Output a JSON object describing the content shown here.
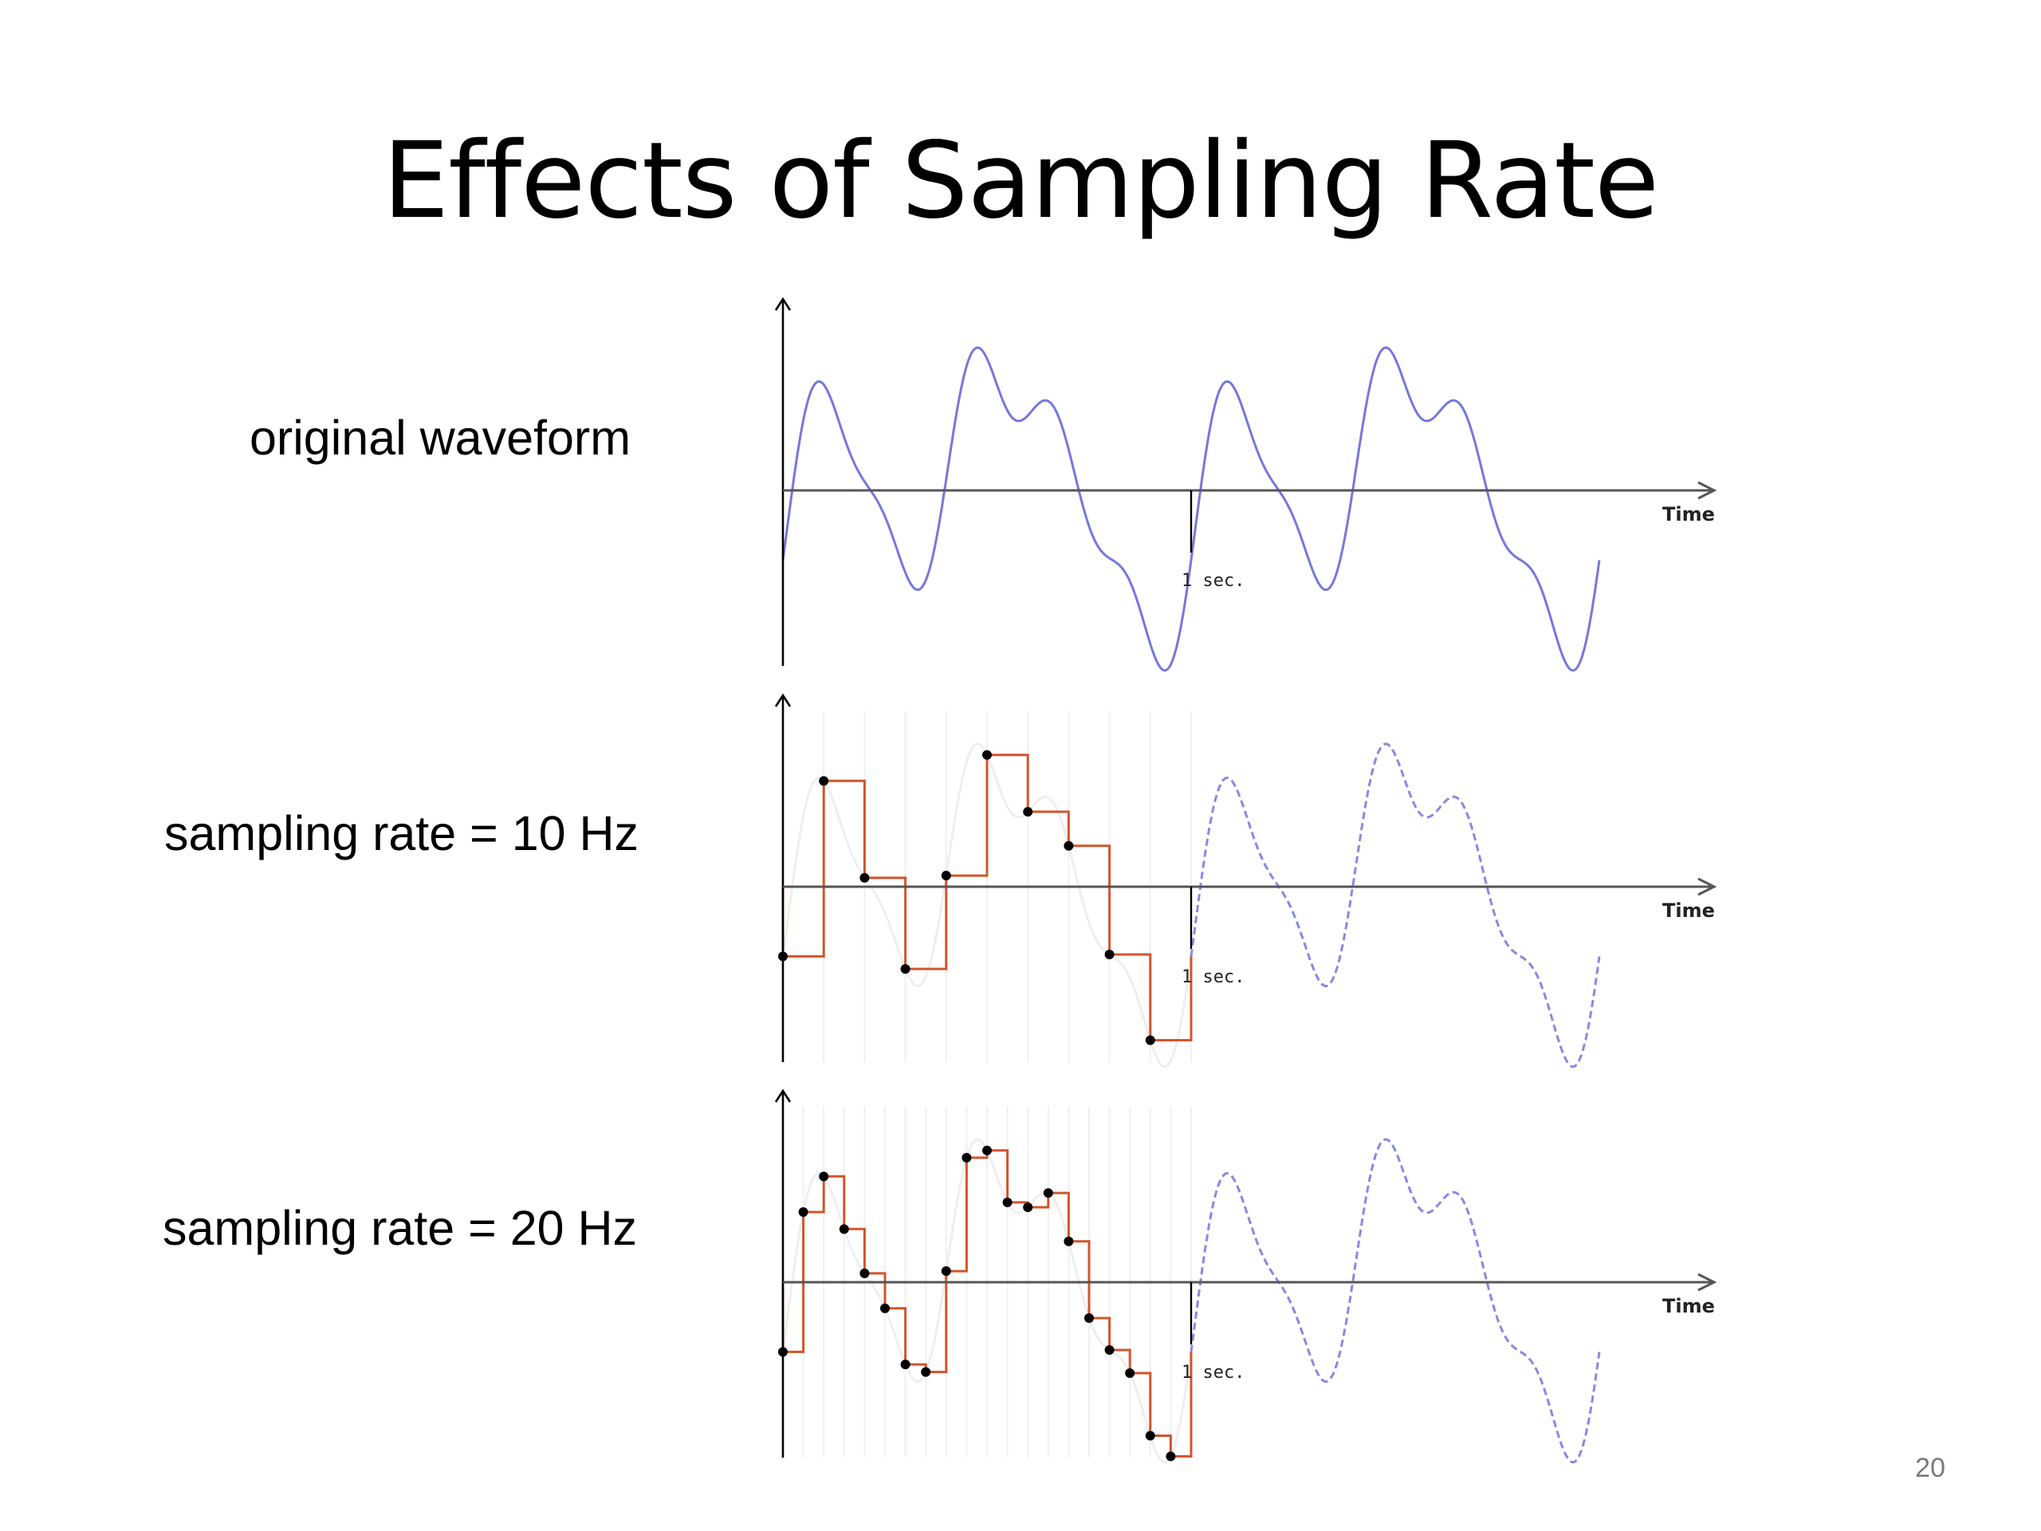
{
  "slide": {
    "title": "Effects of Sampling Rate",
    "page_number": "20"
  },
  "rows": [
    {
      "label": "original waveform"
    },
    {
      "label": "sampling rate = 10 Hz"
    },
    {
      "label": "sampling rate = 20 Hz"
    }
  ],
  "axis": {
    "x_label": "Time",
    "marker_label": "1 sec."
  },
  "colors": {
    "waveform": "#7777dd",
    "sampled": "#d2542a",
    "sample_point": "#000000"
  },
  "chart_data": {
    "type": "line",
    "description_units": "time in seconds, amplitude arbitrary",
    "period_seconds": 1,
    "panels": [
      {
        "name": "original",
        "sample_rate_hz": null
      },
      {
        "name": "10 Hz",
        "sample_rate_hz": 10
      },
      {
        "name": "20 Hz",
        "sample_rate_hz": 20
      }
    ]
  }
}
